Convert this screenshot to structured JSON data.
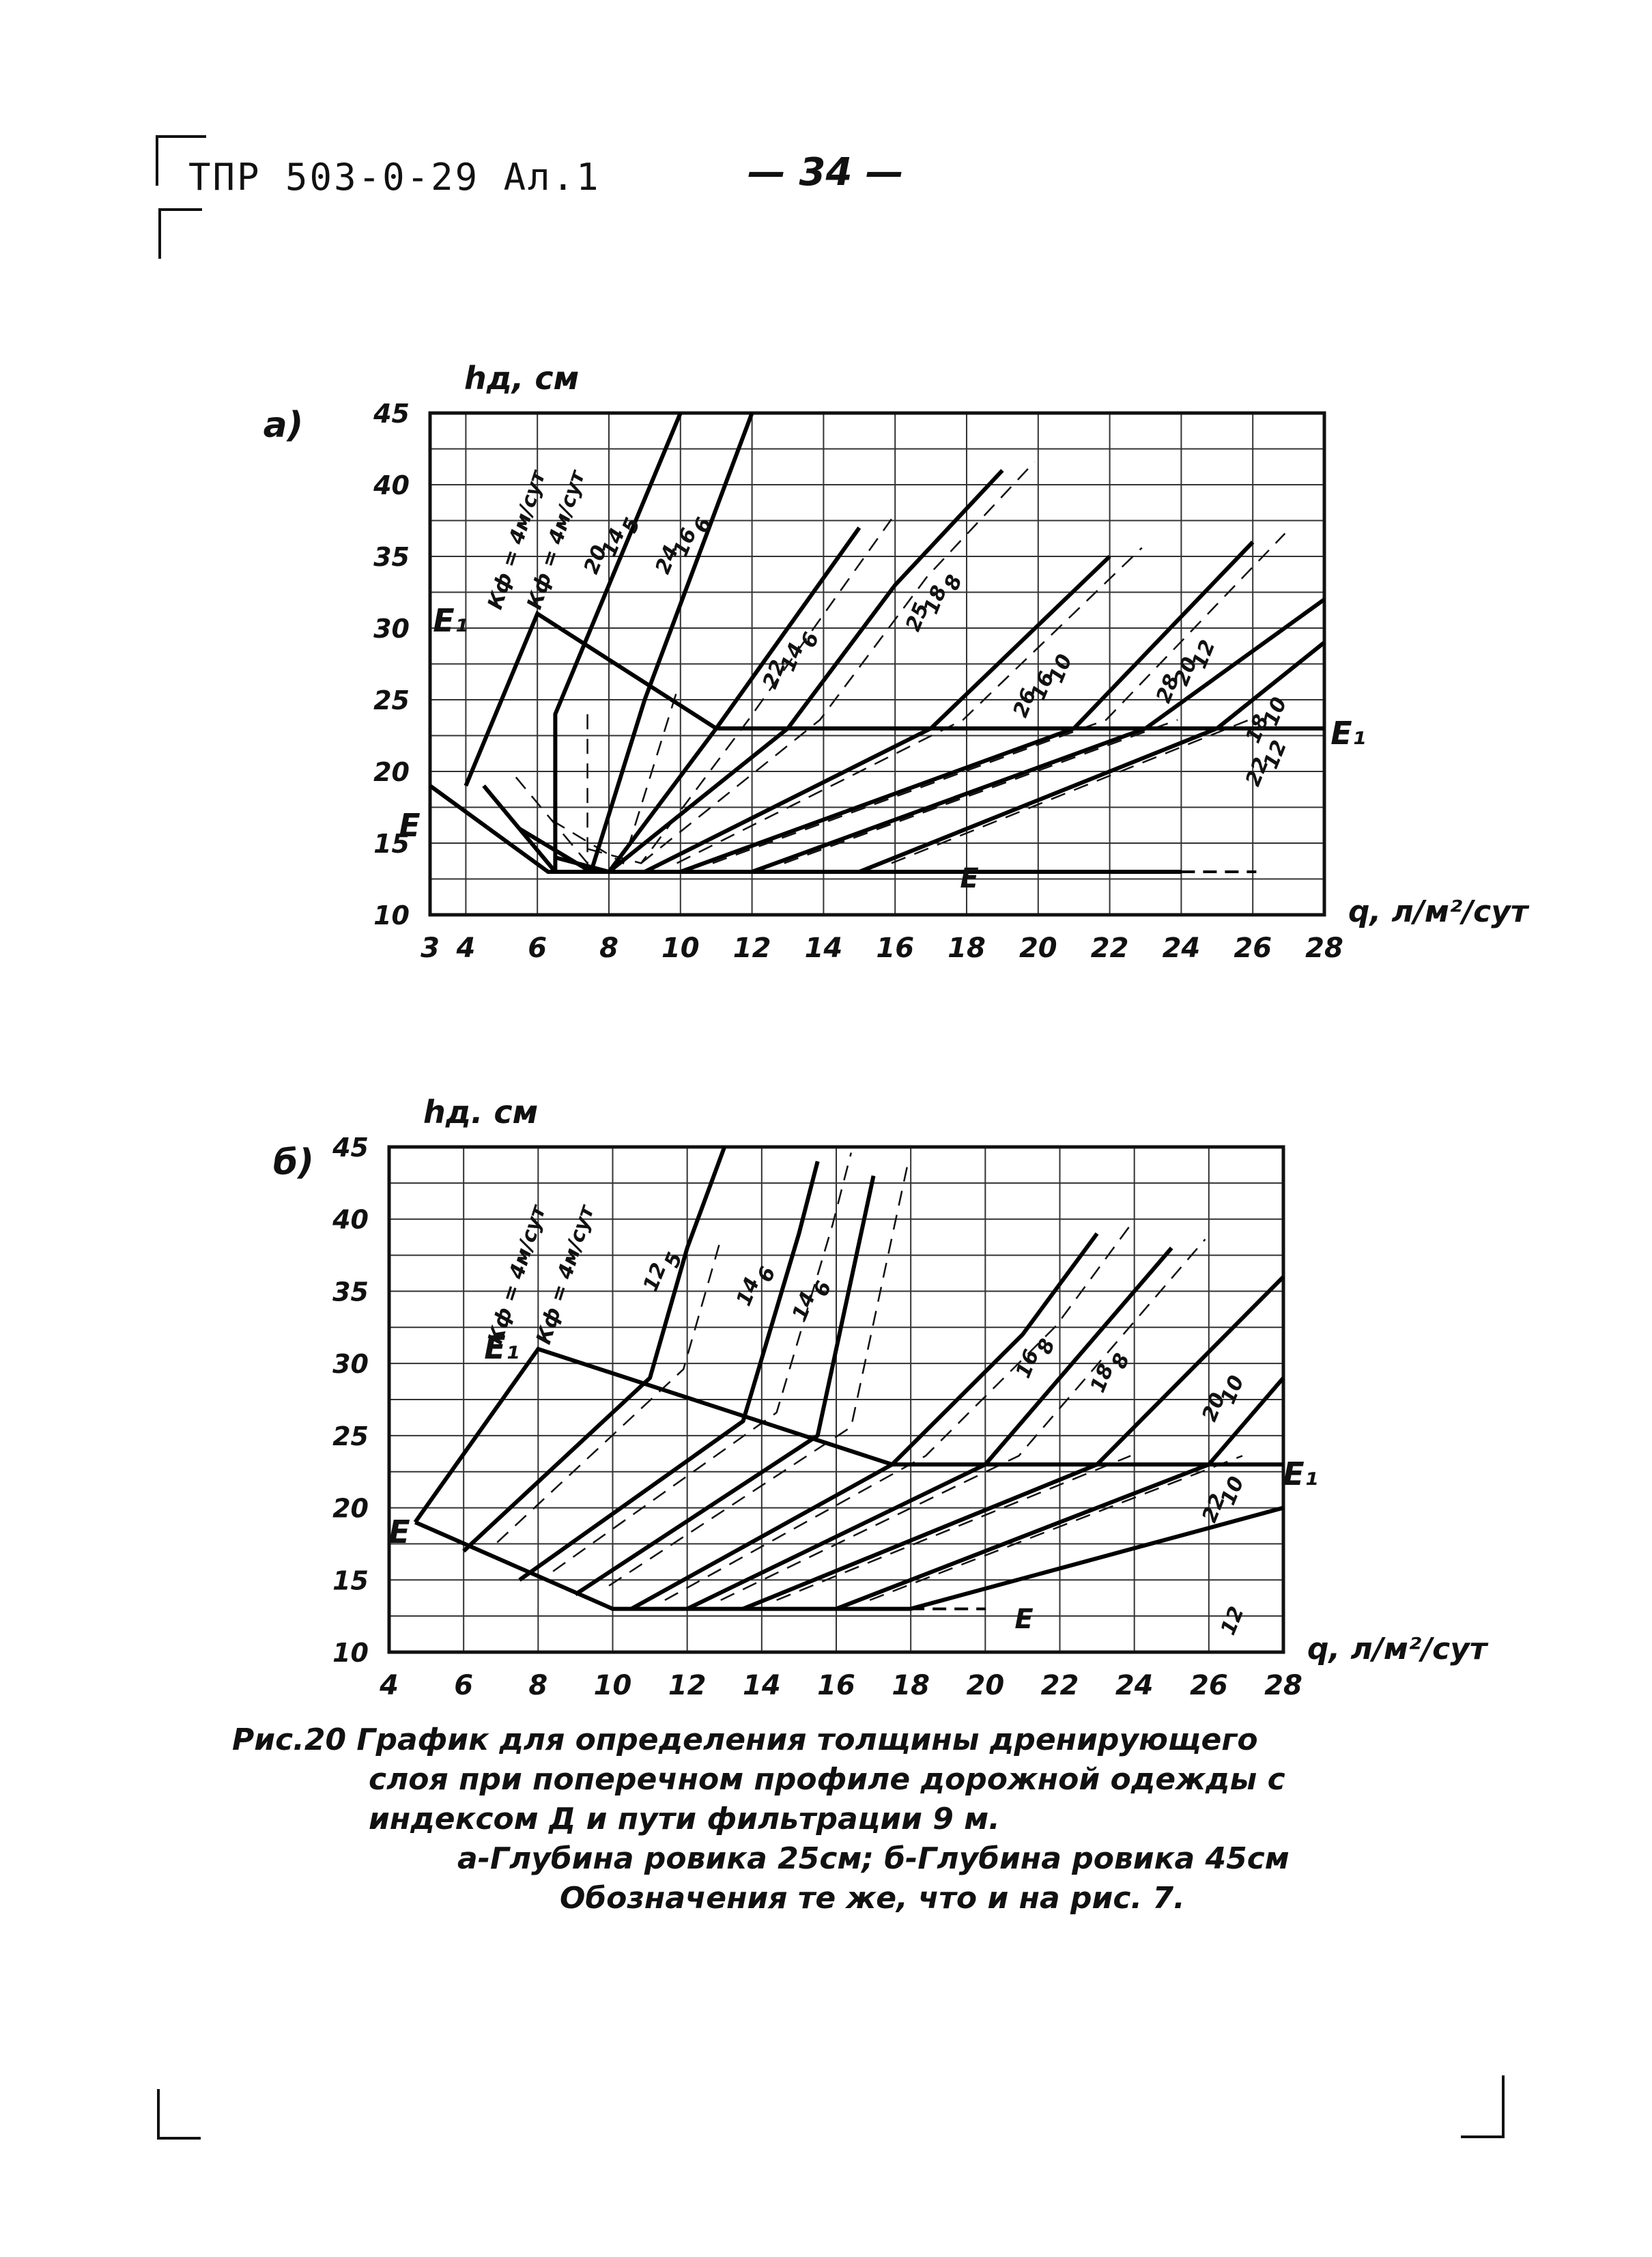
{
  "header": {
    "code": "ТПР 503-0-29 Ал.1",
    "page": "— 34 —"
  },
  "chart_data": [
    {
      "panel": "а)",
      "type": "line",
      "ylabel": "hд, см",
      "xlabel": "q, л/м²/сут",
      "xlim": [
        3,
        28
      ],
      "ylim": [
        10,
        45
      ],
      "x_ticks": [
        "3",
        "4",
        "6",
        "8",
        "10",
        "12",
        "14",
        "16",
        "18",
        "20",
        "22",
        "24",
        "26",
        "28"
      ],
      "y_ticks": [
        "10",
        "15",
        "20",
        "25",
        "30",
        "35",
        "40",
        "45"
      ],
      "grid": true,
      "annotations": [
        "E",
        "E",
        "E₁",
        "E₁",
        "Кф = 4м/сут",
        "Кф = 4м/сут",
        "5",
        "6",
        "6",
        "8",
        "10",
        "12",
        "10",
        "12",
        "14",
        "16",
        "14",
        "18",
        "16",
        "20",
        "18",
        "22",
        "20",
        "24",
        "22",
        "25",
        "26",
        "28"
      ],
      "envelope_E": [
        [
          3,
          19
        ],
        [
          6.3,
          13
        ],
        [
          24,
          13
        ]
      ],
      "envelope_E1": [
        [
          4,
          19
        ],
        [
          6,
          31
        ],
        [
          11,
          23
        ],
        [
          28,
          23
        ]
      ],
      "series": [
        {
          "label": "5",
          "style": "solid",
          "points": [
            [
              4.5,
              19
            ],
            [
              6.5,
              13
            ],
            [
              6.5,
              24
            ],
            [
              10,
              45
            ]
          ]
        },
        {
          "label": "6",
          "style": "solid",
          "points": [
            [
              5.5,
              16
            ],
            [
              7.5,
              13
            ],
            [
              9,
              25
            ],
            [
              12,
              45
            ]
          ]
        },
        {
          "label": "8",
          "style": "solid",
          "points": [
            [
              6.5,
              14
            ],
            [
              8,
              13
            ],
            [
              11,
              23
            ],
            [
              15,
              37
            ]
          ]
        },
        {
          "label": "12",
          "style": "solid",
          "points": [
            [
              8,
              13
            ],
            [
              13,
              23
            ],
            [
              16,
              33
            ],
            [
              19,
              41
            ]
          ]
        },
        {
          "label": "16",
          "style": "solid",
          "points": [
            [
              9,
              13
            ],
            [
              17,
              23
            ],
            [
              22,
              35
            ]
          ]
        },
        {
          "label": "20",
          "style": "solid",
          "points": [
            [
              10,
              13
            ],
            [
              21,
              23
            ],
            [
              26,
              36
            ]
          ]
        },
        {
          "label": "24",
          "style": "solid",
          "points": [
            [
              12,
              13
            ],
            [
              23,
              23
            ],
            [
              28,
              32
            ]
          ]
        },
        {
          "label": "28",
          "style": "solid",
          "points": [
            [
              15,
              13
            ],
            [
              25,
              23
            ],
            [
              28,
              29
            ]
          ]
        }
      ]
    },
    {
      "panel": "б)",
      "type": "line",
      "ylabel": "hд. см",
      "xlabel": "q, л/м²/сут",
      "xlim": [
        4,
        28
      ],
      "ylim": [
        10,
        45
      ],
      "x_ticks": [
        "4",
        "6",
        "8",
        "10",
        "12",
        "14",
        "16",
        "18",
        "20",
        "22",
        "24",
        "26",
        "28"
      ],
      "y_ticks": [
        "10",
        "15",
        "20",
        "25",
        "30",
        "35",
        "40",
        "45"
      ],
      "grid": true,
      "annotations": [
        "E",
        "E",
        "E₁",
        "E₁",
        "Кф = 4м/сут",
        "Кф = 4м/сут",
        "5",
        "6",
        "6",
        "8",
        "8",
        "10",
        "10",
        "12",
        "12",
        "14",
        "14",
        "16",
        "18",
        "20",
        "22"
      ],
      "envelope_E": [
        [
          4.7,
          19
        ],
        [
          10,
          13
        ],
        [
          18,
          13
        ]
      ],
      "envelope_E1": [
        [
          4.7,
          19
        ],
        [
          8,
          31
        ],
        [
          17.5,
          23
        ],
        [
          28,
          23
        ]
      ],
      "series": [
        {
          "label": "5",
          "style": "solid",
          "points": [
            [
              6,
              17
            ],
            [
              11,
              29
            ],
            [
              12,
              38
            ],
            [
              13,
              45
            ]
          ]
        },
        {
          "label": "8",
          "style": "solid",
          "points": [
            [
              7.5,
              15
            ],
            [
              13.5,
              26
            ],
            [
              15,
              39
            ],
            [
              15.5,
              44
            ]
          ]
        },
        {
          "label": "10",
          "style": "solid",
          "points": [
            [
              9,
              14
            ],
            [
              15.5,
              25
            ],
            [
              17,
              43
            ]
          ]
        },
        {
          "label": "12",
          "style": "solid",
          "points": [
            [
              10.5,
              13
            ],
            [
              17.5,
              23
            ],
            [
              21,
              32
            ],
            [
              23,
              39
            ]
          ]
        },
        {
          "label": "14",
          "style": "solid",
          "points": [
            [
              12,
              13
            ],
            [
              20,
              23
            ],
            [
              25,
              38
            ]
          ]
        },
        {
          "label": "16",
          "style": "solid",
          "points": [
            [
              13.5,
              13
            ],
            [
              23,
              23
            ],
            [
              28,
              36
            ]
          ]
        },
        {
          "label": "18",
          "style": "solid",
          "points": [
            [
              16,
              13
            ],
            [
              26,
              23
            ],
            [
              28,
              29
            ]
          ]
        },
        {
          "label": "22",
          "style": "solid",
          "points": [
            [
              18,
              13
            ],
            [
              28,
              20
            ]
          ]
        }
      ]
    }
  ],
  "caption": {
    "line1": "Рис.20 График для определения толщины дренирующего",
    "line2": "слоя при поперечном профиле дорожной одежды с",
    "line3": "индексом Д и пути фильтрации 9 м.",
    "line4": "а-Глубина ровика 25см; б-Глубина ровика 45см",
    "line5": "Обозначения те же, что и на рис. 7."
  }
}
